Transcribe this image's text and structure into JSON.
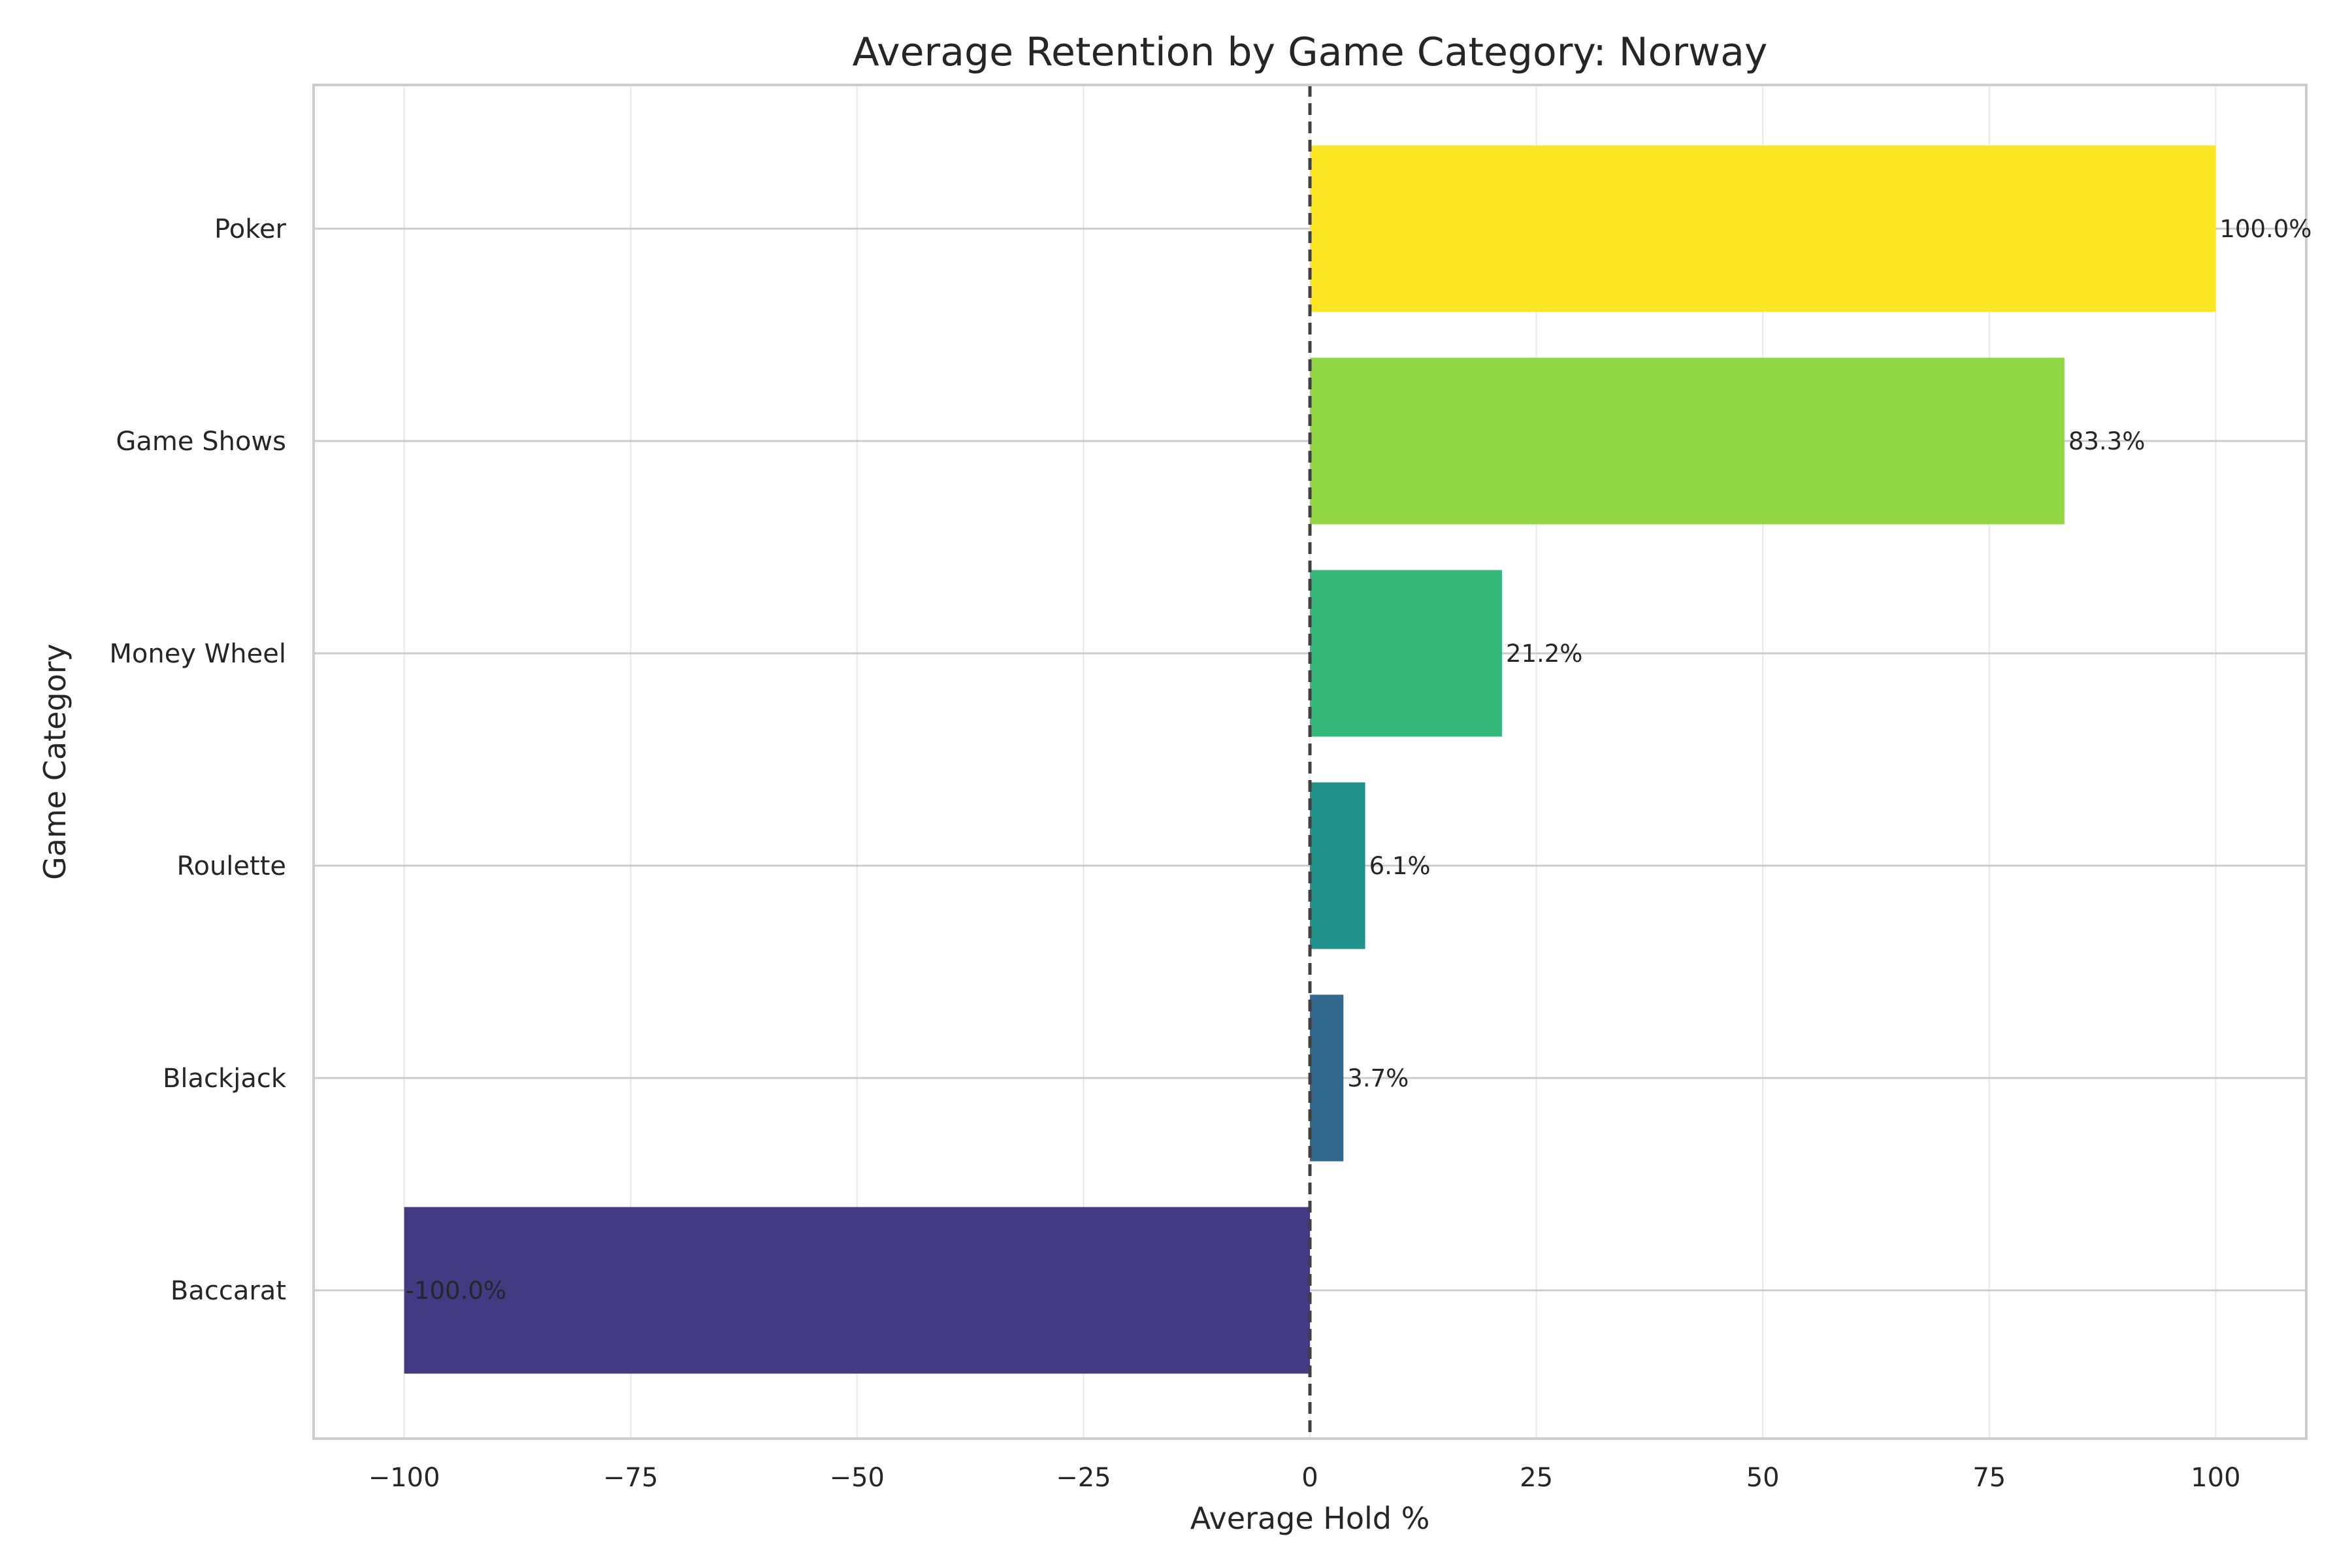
{
  "chart_data": {
    "type": "bar",
    "orientation": "horizontal",
    "title": "Average Retention by Game Category: Norway",
    "xlabel": "Average Hold %",
    "ylabel": "Game Category",
    "categories": [
      "Poker",
      "Game Shows",
      "Money Wheel",
      "Roulette",
      "Blackjack",
      "Baccarat"
    ],
    "values": [
      100.0,
      83.3,
      21.2,
      6.1,
      3.7,
      -100.0
    ],
    "value_labels": [
      "100.0%",
      "83.3%",
      "21.2%",
      "6.1%",
      "3.7%",
      "-100.0%"
    ],
    "colors": [
      "#fde725",
      "#90d743",
      "#35b779",
      "#21918c",
      "#31688e",
      "#443983"
    ],
    "xlim": [
      -110,
      110
    ],
    "xticks": [
      -100,
      -75,
      -50,
      -25,
      0,
      25,
      50,
      75,
      100
    ],
    "xtick_labels": [
      "−100",
      "−75",
      "−50",
      "−25",
      "0",
      "25",
      "50",
      "75",
      "100"
    ],
    "grid": true,
    "reference_line": 0
  }
}
